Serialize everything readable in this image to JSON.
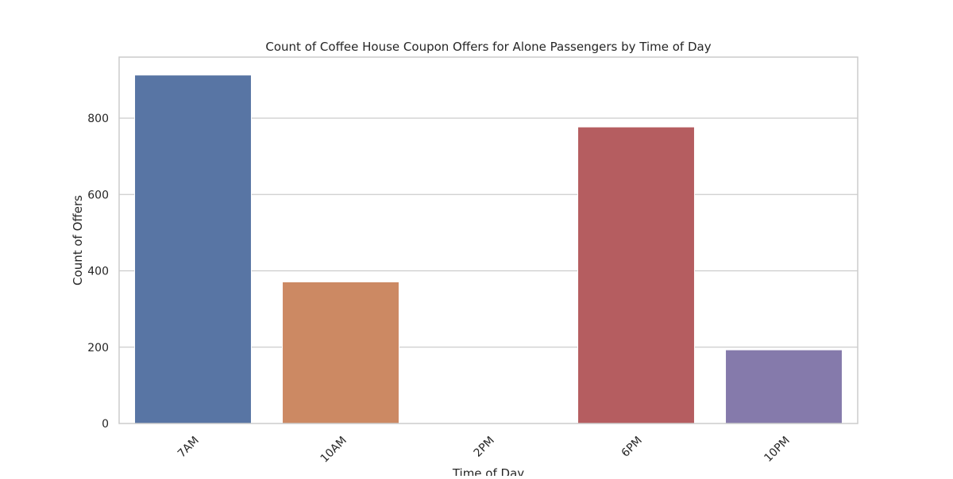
{
  "chart_data": {
    "type": "bar",
    "title": "Count of Coffee House Coupon Offers for Alone Passengers by Time of Day",
    "xlabel": "Time of Day",
    "ylabel": "Count of Offers",
    "categories": [
      "7AM",
      "10AM",
      "2PM",
      "6PM",
      "10PM"
    ],
    "values": [
      913,
      371,
      0,
      777,
      193
    ],
    "ylim": [
      0,
      960
    ],
    "yticks": [
      0,
      200,
      400,
      600,
      800
    ],
    "grid": true,
    "colors": [
      "#5875a4",
      "#cc8963",
      "#5f9e6e",
      "#b55d60",
      "#857aab"
    ]
  }
}
